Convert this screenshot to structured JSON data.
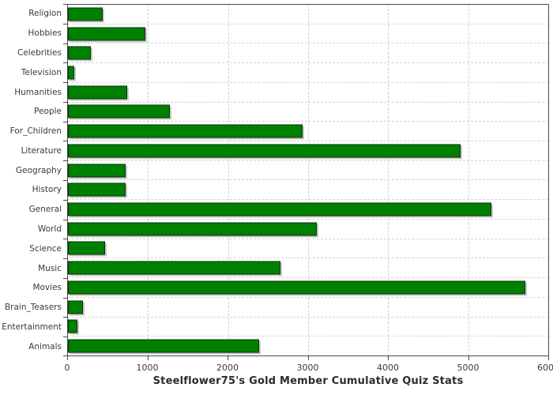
{
  "title": "Steelflower75's Gold Member Cumulative Quiz Stats",
  "chart_data": {
    "type": "bar",
    "orientation": "horizontal",
    "title": "Steelflower75's Gold Member Cumulative Quiz Stats",
    "xlabel": "",
    "ylabel": "",
    "categories": [
      "Religion",
      "Hobbies",
      "Celebrities",
      "Television",
      "Humanities",
      "People",
      "For_Children",
      "Literature",
      "Geography",
      "History",
      "General",
      "World",
      "Science",
      "Music",
      "Movies",
      "Brain_Teasers",
      "Entertainment",
      "Animals"
    ],
    "values": [
      430,
      970,
      290,
      75,
      740,
      1270,
      2930,
      4900,
      720,
      720,
      5290,
      3110,
      465,
      2650,
      5710,
      190,
      115,
      2390
    ],
    "xlim": [
      0,
      6000
    ],
    "x_ticks": [
      0,
      1000,
      2000,
      3000,
      4000,
      5000,
      6000
    ],
    "grid": true,
    "legend": "none",
    "bar_color": "#008000",
    "bar_border_color": "#003000",
    "bar_shadow_color": "#c8c8c8",
    "grid_color": "#cfcfcf",
    "axis_color": "#4a4a4a",
    "text_color": "#3a3a3a"
  }
}
